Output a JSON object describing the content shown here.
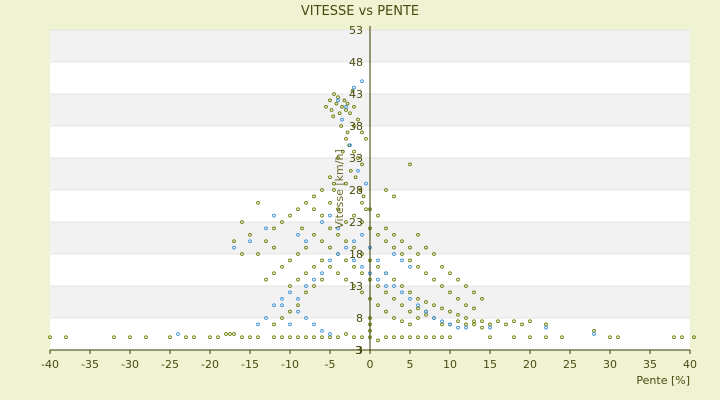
{
  "chart_data": {
    "type": "scatter",
    "title": "VITESSE vs PENTE",
    "xlabel": "Pente [%]",
    "ylabel": "Vitesse [km/h]",
    "xlim": [
      -40,
      40
    ],
    "ylim": [
      3,
      53
    ],
    "x_ticks": [
      "-40",
      "-35",
      "-30",
      "-25",
      "-20",
      "-15",
      "-10",
      "-5",
      "0",
      "5",
      "10",
      "15",
      "20",
      "25",
      "30",
      "35",
      "40"
    ],
    "y_ticks": [
      "3",
      "8",
      "13",
      "18",
      "23",
      "28",
      "33",
      "38",
      "43",
      "48",
      "53"
    ],
    "y_zero_label": "3",
    "grid": true,
    "background_bands": true,
    "colors": {
      "page_bg": "#f0f3d2",
      "plot_band_light": "#ffffff",
      "plot_band_dark": "#f2f2f2",
      "axis": "#3a3a00",
      "text": "#4a4a10",
      "series_a": "#6b7a00",
      "series_b": "#3a8fd8"
    },
    "series": [
      {
        "color": "#6b7a00",
        "points": [
          [
            -40,
            5
          ],
          [
            -38,
            5
          ],
          [
            -32,
            5
          ],
          [
            -30,
            5
          ],
          [
            -28,
            5
          ],
          [
            -25,
            5
          ],
          [
            -23,
            5
          ],
          [
            -22,
            5
          ],
          [
            -20,
            5
          ],
          [
            -19,
            5
          ],
          [
            -18,
            5.5
          ],
          [
            -17.5,
            5.5
          ],
          [
            -17,
            5.5
          ],
          [
            -16,
            5
          ],
          [
            -15,
            5
          ],
          [
            -14,
            5
          ],
          [
            -12,
            5
          ],
          [
            -11,
            5
          ],
          [
            -10,
            5
          ],
          [
            -9,
            5
          ],
          [
            -8,
            5
          ],
          [
            -7,
            5
          ],
          [
            -6,
            5
          ],
          [
            -5,
            5
          ],
          [
            -4,
            5
          ],
          [
            -3,
            5.5
          ],
          [
            -2,
            5
          ],
          [
            -1,
            5
          ],
          [
            0,
            5
          ],
          [
            0,
            6
          ],
          [
            0,
            7
          ],
          [
            0,
            8
          ],
          [
            1,
            4.5
          ],
          [
            2,
            5
          ],
          [
            3,
            5
          ],
          [
            4,
            5
          ],
          [
            5,
            5
          ],
          [
            6,
            5
          ],
          [
            7,
            5
          ],
          [
            8,
            5
          ],
          [
            9,
            5
          ],
          [
            10,
            5
          ],
          [
            15,
            5
          ],
          [
            18,
            5
          ],
          [
            20,
            5
          ],
          [
            22,
            5
          ],
          [
            24,
            5
          ],
          [
            28,
            6
          ],
          [
            30,
            5
          ],
          [
            31,
            5
          ],
          [
            38,
            5
          ],
          [
            39,
            5
          ],
          [
            40.5,
            5
          ],
          [
            -5.5,
            41
          ],
          [
            -5,
            42
          ],
          [
            -4.8,
            40.5
          ],
          [
            -4.5,
            43
          ],
          [
            -4.2,
            41.5
          ],
          [
            -4,
            42.5
          ],
          [
            -3.8,
            40
          ],
          [
            -3.5,
            41
          ],
          [
            -3.2,
            42
          ],
          [
            -3,
            40.5
          ],
          [
            -2.8,
            41.5
          ],
          [
            -2.5,
            40
          ],
          [
            -2.2,
            43.5
          ],
          [
            -2,
            41
          ],
          [
            -4.6,
            39.5
          ],
          [
            -3.6,
            38
          ],
          [
            -3,
            36
          ],
          [
            -2.6,
            35
          ],
          [
            -2,
            34
          ],
          [
            -1.5,
            33
          ],
          [
            -1,
            32
          ],
          [
            -2.8,
            37
          ],
          [
            -3.4,
            34
          ],
          [
            -4,
            33
          ],
          [
            -1.8,
            30
          ],
          [
            -1.2,
            28
          ],
          [
            -0.8,
            27
          ],
          [
            -0.5,
            25
          ],
          [
            -2.4,
            31
          ],
          [
            -3,
            29
          ],
          [
            -4.5,
            29
          ],
          [
            -5,
            30
          ],
          [
            -6,
            28
          ],
          [
            -7,
            27
          ],
          [
            -8,
            26
          ],
          [
            -9,
            25
          ],
          [
            -10,
            24
          ],
          [
            -11,
            23
          ],
          [
            -12,
            22
          ],
          [
            -14,
            26
          ],
          [
            -15,
            21
          ],
          [
            -16,
            18
          ],
          [
            -17,
            20
          ],
          [
            -6,
            24
          ],
          [
            -5,
            22
          ],
          [
            -4,
            21
          ],
          [
            -3,
            20
          ],
          [
            -2,
            19
          ],
          [
            -1,
            18
          ],
          [
            0,
            17
          ],
          [
            1,
            16
          ],
          [
            2,
            15
          ],
          [
            3,
            14
          ],
          [
            4,
            13
          ],
          [
            5,
            12
          ],
          [
            6,
            11
          ],
          [
            7,
            10.5
          ],
          [
            8,
            10
          ],
          [
            9,
            9.5
          ],
          [
            10,
            9
          ],
          [
            11,
            8.5
          ],
          [
            12,
            8
          ],
          [
            13,
            7.5
          ],
          [
            14,
            7.5
          ],
          [
            15,
            7
          ],
          [
            16,
            7.5
          ],
          [
            17,
            7
          ],
          [
            18,
            7.5
          ],
          [
            19,
            7
          ],
          [
            20,
            7.5
          ],
          [
            22,
            7
          ],
          [
            -2,
            24
          ],
          [
            -1,
            23
          ],
          [
            0,
            22
          ],
          [
            1,
            21
          ],
          [
            2,
            20
          ],
          [
            3,
            19
          ],
          [
            4,
            18
          ],
          [
            5,
            17
          ],
          [
            6,
            16
          ],
          [
            7,
            15
          ],
          [
            -3,
            23
          ],
          [
            -4,
            25
          ],
          [
            -5,
            26
          ],
          [
            1,
            24
          ],
          [
            2,
            22
          ],
          [
            3,
            21
          ],
          [
            0,
            25
          ],
          [
            -1,
            26
          ],
          [
            4,
            20
          ],
          [
            5,
            19
          ],
          [
            6,
            18
          ],
          [
            8,
            14
          ],
          [
            9,
            13
          ],
          [
            10,
            12
          ],
          [
            11,
            11
          ],
          [
            12,
            10
          ],
          [
            13,
            9.5
          ],
          [
            -6,
            20
          ],
          [
            -7,
            21
          ],
          [
            -8,
            19
          ],
          [
            -9,
            18
          ],
          [
            -10,
            17
          ],
          [
            -11,
            16
          ],
          [
            -12,
            15
          ],
          [
            -13,
            14
          ],
          [
            -8,
            15
          ],
          [
            -9,
            14
          ],
          [
            -10,
            13
          ],
          [
            -7,
            16
          ],
          [
            -6,
            17
          ],
          [
            -5,
            16
          ],
          [
            -4,
            15
          ],
          [
            -3,
            14
          ],
          [
            -2,
            13
          ],
          [
            -1,
            12
          ],
          [
            0,
            11
          ],
          [
            1,
            10
          ],
          [
            2,
            9
          ],
          [
            3,
            8
          ],
          [
            4,
            7.5
          ],
          [
            5,
            7
          ],
          [
            6,
            8
          ],
          [
            7,
            9
          ],
          [
            8,
            8
          ],
          [
            9,
            7
          ],
          [
            10,
            7
          ],
          [
            11,
            7.5
          ],
          [
            12,
            7
          ],
          [
            13,
            7
          ],
          [
            14,
            6.5
          ],
          [
            -1,
            15
          ],
          [
            0,
            14
          ],
          [
            1,
            13
          ],
          [
            2,
            12
          ],
          [
            3,
            11
          ],
          [
            4,
            10
          ],
          [
            5,
            9
          ],
          [
            6,
            9.5
          ],
          [
            7,
            8.5
          ],
          [
            -2,
            16
          ],
          [
            -3,
            17
          ],
          [
            -4,
            18
          ],
          [
            -5,
            19
          ],
          [
            -6,
            14
          ],
          [
            -7,
            13
          ],
          [
            -8,
            12
          ],
          [
            -9,
            10
          ],
          [
            -10,
            9
          ],
          [
            -11,
            8
          ],
          [
            -12,
            7
          ],
          [
            5,
            32
          ],
          [
            3,
            27
          ],
          [
            2,
            28
          ],
          [
            -0.5,
            36
          ],
          [
            -1,
            37
          ],
          [
            -2,
            38
          ],
          [
            -1.5,
            39
          ],
          [
            -4.5,
            28
          ],
          [
            -7,
            25
          ],
          [
            -8.5,
            22
          ],
          [
            6,
            21
          ],
          [
            7,
            19
          ],
          [
            8,
            18
          ],
          [
            9,
            16
          ],
          [
            10,
            15
          ],
          [
            11,
            14
          ],
          [
            12,
            13
          ],
          [
            13,
            12
          ],
          [
            14,
            11
          ],
          [
            -14,
            18
          ],
          [
            -13,
            20
          ],
          [
            -12,
            19
          ],
          [
            -16,
            23
          ]
        ]
      },
      {
        "color": "#3a8fd8",
        "points": [
          [
            -24,
            5.5
          ],
          [
            -10,
            7
          ],
          [
            -11,
            10
          ],
          [
            -9,
            11
          ],
          [
            -8,
            13
          ],
          [
            -7,
            14
          ],
          [
            -6,
            15
          ],
          [
            -5,
            17
          ],
          [
            -4,
            18
          ],
          [
            -3,
            19
          ],
          [
            -2,
            20
          ],
          [
            -1,
            21
          ],
          [
            0,
            19
          ],
          [
            1,
            17
          ],
          [
            2,
            15
          ],
          [
            3,
            13
          ],
          [
            4,
            12
          ],
          [
            5,
            11
          ],
          [
            6,
            10
          ],
          [
            7,
            9
          ],
          [
            8,
            8
          ],
          [
            9,
            7.5
          ],
          [
            10,
            7
          ],
          [
            11,
            6.5
          ],
          [
            12,
            6.5
          ],
          [
            15,
            6.5
          ],
          [
            22,
            6.5
          ],
          [
            28,
            5.5
          ],
          [
            -4,
            42
          ],
          [
            -3,
            41
          ],
          [
            -2,
            44
          ],
          [
            -1,
            45
          ],
          [
            -3.5,
            39
          ],
          [
            -2.5,
            35
          ],
          [
            -1.5,
            31
          ],
          [
            -0.5,
            29
          ],
          [
            -6,
            23
          ],
          [
            -5,
            24
          ],
          [
            -4,
            22
          ],
          [
            -2,
            17
          ],
          [
            -1,
            16
          ],
          [
            0,
            15
          ],
          [
            1,
            14
          ],
          [
            2,
            13
          ],
          [
            -12,
            24
          ],
          [
            -13,
            22
          ],
          [
            -15,
            20
          ],
          [
            -17,
            19
          ],
          [
            -8,
            20
          ],
          [
            -9,
            21
          ],
          [
            3,
            18
          ],
          [
            4,
            17
          ],
          [
            5,
            16
          ],
          [
            -10,
            12
          ],
          [
            -11,
            11
          ],
          [
            -12,
            10
          ],
          [
            -9,
            9
          ],
          [
            -8,
            8
          ],
          [
            -7,
            7
          ],
          [
            -6,
            6
          ],
          [
            -5,
            5.5
          ],
          [
            -13,
            8
          ],
          [
            -14,
            7
          ]
        ]
      }
    ]
  }
}
